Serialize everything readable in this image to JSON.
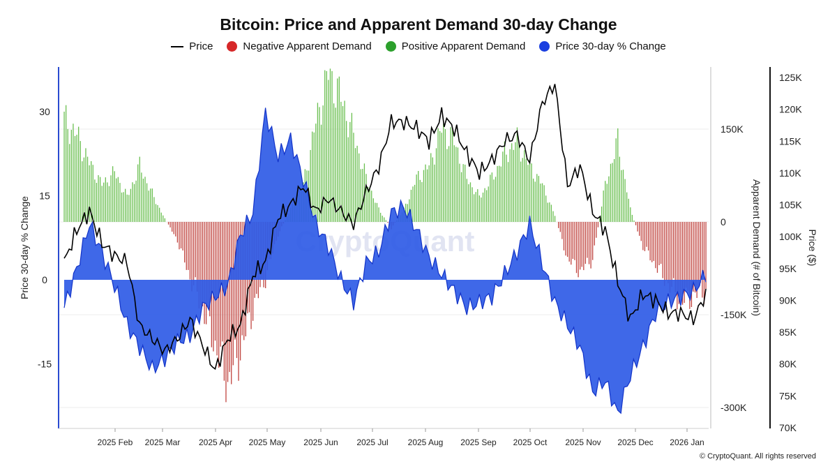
{
  "chart_data": {
    "type": "bar",
    "title": "Bitcoin: Price and Apparent Demand 30-day Change",
    "left_axis_label": "Price 30-day % Change",
    "mid_axis_label": "Apparent Demand (# of Bitcoin)",
    "right_axis_label": "Price ($)",
    "left_ticks": [
      "30",
      "15",
      "0",
      "-15"
    ],
    "mid_ticks": [
      "150K",
      "0",
      "-150K",
      "-300K"
    ],
    "right_ticks": [
      "125K",
      "120K",
      "115K",
      "110K",
      "105K",
      "100K",
      "95K",
      "90K",
      "85K",
      "80K",
      "75K",
      "70K"
    ],
    "x_ticks": [
      "2025 Feb",
      "2025 Mar",
      "2025 Apr",
      "2025 May",
      "2025 Jun",
      "2025 Jul",
      "2025 Aug",
      "2025 Sep",
      "2025 Oct",
      "2025 Nov",
      "2025 Dec",
      "2026 Jan"
    ],
    "left_ylim": [
      -27,
      37
    ],
    "demand_ylim": [
      -330000,
      260000
    ],
    "price_ylim": [
      70000,
      127000
    ],
    "legend": [
      {
        "label": "Price",
        "color": "#000000",
        "kind": "line"
      },
      {
        "label": "Negative Apparent Demand",
        "color": "#d62728",
        "kind": "dot"
      },
      {
        "label": "Positive Apparent Demand",
        "color": "#2ca02c",
        "kind": "dot"
      },
      {
        "label": "Price 30-day % Change",
        "color": "#1a3fe0",
        "kind": "dot"
      }
    ],
    "colors": {
      "positive_demand": "#6abf50",
      "negative_demand": "#c0443f",
      "price_change_fill": "#2f5be6",
      "price_change_line": "#1233c8",
      "price_line": "#000000",
      "grid": "#eeeeee"
    },
    "series": [
      {
        "name": "Apparent Demand",
        "weeks": [
          "Jan 13",
          "Jan 20",
          "Jan 27",
          "Feb 3",
          "Feb 10",
          "Feb 17",
          "Feb 24",
          "Mar 3",
          "Mar 10",
          "Mar 17",
          "Mar 24",
          "Mar 31",
          "Apr 7",
          "Apr 14",
          "Apr 21",
          "Apr 28",
          "May 5",
          "May 12",
          "May 19",
          "May 26",
          "Jun 2",
          "Jun 9",
          "Jun 16",
          "Jun 23",
          "Jun 30",
          "Jul 7",
          "Jul 14",
          "Jul 21",
          "Jul 28",
          "Aug 4",
          "Aug 11",
          "Aug 18",
          "Aug 25",
          "Sep 1",
          "Sep 8",
          "Sep 15",
          "Sep 22",
          "Sep 29",
          "Oct 6",
          "Oct 13",
          "Oct 20",
          "Oct 27",
          "Nov 3",
          "Nov 10",
          "Nov 17",
          "Nov 24",
          "Dec 1",
          "Dec 8",
          "Dec 15",
          "Dec 22",
          "Dec 29",
          "Jan 5"
        ],
        "values": [
          165000,
          140000,
          95000,
          60000,
          80000,
          40000,
          90000,
          45000,
          5000,
          -30000,
          -90000,
          -140000,
          -200000,
          -260000,
          -210000,
          -140000,
          -90000,
          -20000,
          20000,
          60000,
          160000,
          240000,
          200000,
          140000,
          70000,
          20000,
          -10000,
          20000,
          70000,
          90000,
          150000,
          130000,
          70000,
          40000,
          70000,
          110000,
          130000,
          90000,
          60000,
          10000,
          -60000,
          -80000,
          -60000,
          60000,
          130000,
          20000,
          -40000,
          -70000,
          -100000,
          -130000,
          -120000,
          -110000
        ]
      },
      {
        "name": "Price 30-day % Change",
        "weeks": [
          "Jan 13",
          "Jan 20",
          "Jan 27",
          "Feb 3",
          "Feb 10",
          "Feb 17",
          "Feb 24",
          "Mar 3",
          "Mar 10",
          "Mar 17",
          "Mar 24",
          "Mar 31",
          "Apr 7",
          "Apr 14",
          "Apr 21",
          "Apr 28",
          "May 5",
          "May 12",
          "May 19",
          "May 26",
          "Jun 2",
          "Jun 9",
          "Jun 16",
          "Jun 23",
          "Jun 30",
          "Jul 7",
          "Jul 14",
          "Jul 21",
          "Jul 28",
          "Aug 4",
          "Aug 11",
          "Aug 18",
          "Aug 25",
          "Sep 1",
          "Sep 8",
          "Sep 15",
          "Sep 22",
          "Sep 29",
          "Oct 6",
          "Oct 13",
          "Oct 20",
          "Oct 27",
          "Nov 3",
          "Nov 10",
          "Nov 17",
          "Nov 24",
          "Dec 1",
          "Dec 8",
          "Dec 15",
          "Dec 22",
          "Dec 29",
          "Jan 5"
        ],
        "values": [
          -5,
          2,
          10,
          5,
          -1,
          -8,
          -12,
          -16,
          -14,
          -11,
          -10,
          -5,
          -3,
          -1,
          8,
          12,
          30,
          22,
          25,
          18,
          10,
          6,
          0,
          -4,
          3,
          5,
          12,
          13,
          9,
          4,
          1,
          -2,
          -5,
          -4,
          -3,
          1,
          5,
          10,
          3,
          -4,
          -8,
          -12,
          -20,
          -18,
          -24,
          -17,
          -12,
          -6,
          -4,
          -3,
          -2,
          1
        ]
      },
      {
        "name": "Price",
        "weeks": [
          "Jan 13",
          "Jan 20",
          "Jan 27",
          "Feb 3",
          "Feb 10",
          "Feb 17",
          "Feb 24",
          "Mar 3",
          "Mar 10",
          "Mar 17",
          "Mar 24",
          "Mar 31",
          "Apr 7",
          "Apr 14",
          "Apr 21",
          "Apr 28",
          "May 5",
          "May 12",
          "May 19",
          "May 26",
          "Jun 2",
          "Jun 9",
          "Jun 16",
          "Jun 23",
          "Jun 30",
          "Jul 7",
          "Jul 14",
          "Jul 21",
          "Jul 28",
          "Aug 4",
          "Aug 11",
          "Aug 18",
          "Aug 25",
          "Sep 1",
          "Sep 8",
          "Sep 15",
          "Sep 22",
          "Sep 29",
          "Oct 6",
          "Oct 13",
          "Oct 20",
          "Oct 27",
          "Nov 3",
          "Nov 10",
          "Nov 17",
          "Nov 24",
          "Dec 1",
          "Dec 8",
          "Dec 15",
          "Dec 22",
          "Dec 29",
          "Jan 5"
        ],
        "values": [
          96000,
          101000,
          104000,
          99000,
          97000,
          96000,
          86000,
          84000,
          82000,
          84000,
          87000,
          83000,
          79000,
          84000,
          86000,
          94000,
          96000,
          103000,
          105000,
          108000,
          104000,
          106000,
          104000,
          102000,
          107000,
          111000,
          118000,
          118000,
          117000,
          115000,
          119000,
          117000,
          113000,
          110000,
          112000,
          115000,
          116000,
          112000,
          121000,
          124000,
          108000,
          111000,
          104000,
          101000,
          93000,
          87000,
          91000,
          90000,
          88000,
          88000,
          87000,
          91000
        ]
      }
    ]
  },
  "watermark": "CryptoQuant",
  "copyright": "© CryptoQuant. All rights reserved"
}
